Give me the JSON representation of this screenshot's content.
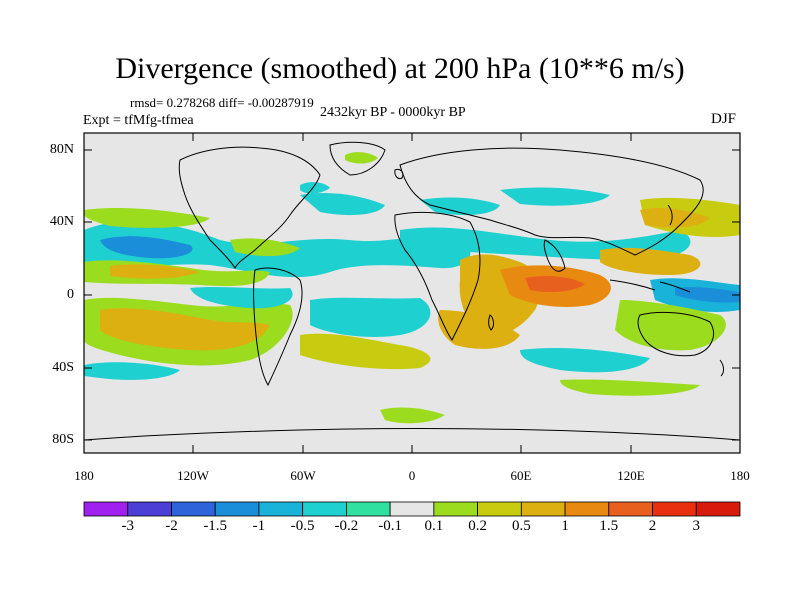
{
  "title": "Divergence (smoothed) at 200 hPa (10**6 m/s)",
  "stats": "rmsd= 0.278268 diff= -0.00287919",
  "experiment": "Expt = tfMfg-tfmea",
  "period": "2432kyr BP - 0000kyr BP",
  "season": "DJF",
  "latitude_labels": [
    "80N",
    "40N",
    "0",
    "40S",
    "80S"
  ],
  "longitude_labels": [
    "180",
    "120W",
    "60W",
    "0",
    "60E",
    "120E",
    "180"
  ],
  "colorbar": {
    "labels": [
      "-3",
      "-2",
      "-1.5",
      "-1",
      "-0.5",
      "-0.2",
      "-0.1",
      "0.1",
      "0.2",
      "0.5",
      "1",
      "1.5",
      "2",
      "3"
    ],
    "colors": [
      "#a020f0",
      "#4b3fd6",
      "#2f63d9",
      "#1a8ed8",
      "#19b3d9",
      "#1fd0d0",
      "#30e0a0",
      "#e6e6e6",
      "#9bdc1e",
      "#c8cc10",
      "#dcb010",
      "#e88a10",
      "#e8601e",
      "#e83010",
      "#d81a0a"
    ]
  },
  "map_colors": {
    "background": "#e6e6e6",
    "coastline": "#000000"
  }
}
